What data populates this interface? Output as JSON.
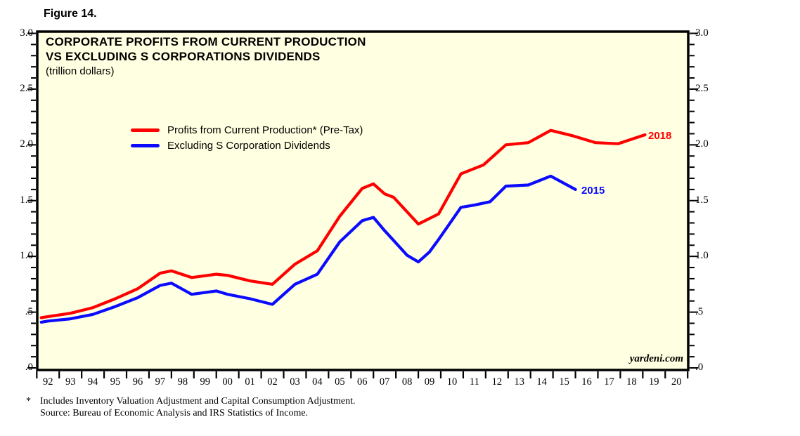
{
  "figure_label": "Figure 14.",
  "chart": {
    "title_line1": "CORPORATE PROFITS FROM CURRENT PRODUCTION",
    "title_line2": "VS EXCLUDING S CORPORATIONS DIVIDENDS",
    "subtitle": "(trillion dollars)",
    "branding": "yardeni.com",
    "colors": {
      "plot_background": "#FFFFE1",
      "frame": "#000000",
      "red_series": "#FF0000",
      "blue_series": "#0B0BFF"
    }
  },
  "footnote": {
    "marker": "*",
    "line1": "Includes Inventory Valuation Adjustment and Capital Consumption Adjustment.",
    "line2": "Source: Bureau of Economic Analysis and IRS Statistics of Income."
  },
  "chart_data": {
    "type": "line",
    "title": "CORPORATE PROFITS FROM CURRENT PRODUCTION VS EXCLUDING S CORPORATIONS DIVIDENDS",
    "subtitle": "(trillion dollars)",
    "ylabel": "trillion dollars",
    "ylim": [
      0.0,
      3.0
    ],
    "y_major_ticks": [
      ".0",
      ".5",
      "1.0",
      "1.5",
      "2.0",
      "2.5",
      "3.0"
    ],
    "y_major_values": [
      0.0,
      0.5,
      1.0,
      1.5,
      2.0,
      2.5,
      3.0
    ],
    "y_minor_step": 0.1,
    "x_labels": [
      "92",
      "93",
      "94",
      "95",
      "96",
      "97",
      "98",
      "99",
      "00",
      "01",
      "02",
      "03",
      "04",
      "05",
      "06",
      "07",
      "08",
      "09",
      "10",
      "11",
      "12",
      "13",
      "14",
      "15",
      "16",
      "17",
      "18",
      "19",
      "20"
    ],
    "xlim_years": [
      1991.5,
      2020.5
    ],
    "grid": false,
    "legend_position": "upper-left-inside",
    "series": [
      {
        "name": "Profits from Current Production* (Pre-Tax)",
        "color": "#FF0000",
        "end_label": "2018",
        "points": [
          [
            1991.7,
            0.45
          ],
          [
            1992,
            0.46
          ],
          [
            1993,
            0.49
          ],
          [
            1994,
            0.54
          ],
          [
            1995,
            0.62
          ],
          [
            1996,
            0.71
          ],
          [
            1997,
            0.85
          ],
          [
            1997.5,
            0.87
          ],
          [
            1998.4,
            0.81
          ],
          [
            1999.5,
            0.84
          ],
          [
            2000,
            0.83
          ],
          [
            2001,
            0.78
          ],
          [
            2002,
            0.75
          ],
          [
            2003,
            0.93
          ],
          [
            2004,
            1.05
          ],
          [
            2005,
            1.36
          ],
          [
            2006,
            1.61
          ],
          [
            2006.5,
            1.65
          ],
          [
            2007,
            1.56
          ],
          [
            2007.4,
            1.53
          ],
          [
            2008.5,
            1.29
          ],
          [
            2009.4,
            1.38
          ],
          [
            2010.4,
            1.74
          ],
          [
            2011.4,
            1.82
          ],
          [
            2012.4,
            2.0
          ],
          [
            2013.4,
            2.02
          ],
          [
            2014.4,
            2.13
          ],
          [
            2015.4,
            2.08
          ],
          [
            2016.4,
            2.02
          ],
          [
            2017.4,
            2.01
          ],
          [
            2018.6,
            2.09
          ]
        ]
      },
      {
        "name": "Excluding S Corporation Dividends",
        "color": "#0B0BFF",
        "end_label": "2015",
        "points": [
          [
            1991.7,
            0.41
          ],
          [
            1992,
            0.42
          ],
          [
            1993,
            0.44
          ],
          [
            1994,
            0.48
          ],
          [
            1995,
            0.55
          ],
          [
            1996,
            0.63
          ],
          [
            1997,
            0.74
          ],
          [
            1997.5,
            0.76
          ],
          [
            1998.4,
            0.66
          ],
          [
            1999.5,
            0.69
          ],
          [
            2000,
            0.66
          ],
          [
            2001,
            0.62
          ],
          [
            2002,
            0.57
          ],
          [
            2003,
            0.75
          ],
          [
            2004,
            0.84
          ],
          [
            2005,
            1.13
          ],
          [
            2006,
            1.32
          ],
          [
            2006.5,
            1.35
          ],
          [
            2007,
            1.23
          ],
          [
            2008,
            1.01
          ],
          [
            2008.5,
            0.95
          ],
          [
            2009,
            1.04
          ],
          [
            2009.4,
            1.15
          ],
          [
            2010.4,
            1.44
          ],
          [
            2011,
            1.46
          ],
          [
            2011.7,
            1.49
          ],
          [
            2012.4,
            1.63
          ],
          [
            2013.4,
            1.64
          ],
          [
            2014.4,
            1.72
          ],
          [
            2015.5,
            1.6
          ]
        ]
      }
    ]
  }
}
